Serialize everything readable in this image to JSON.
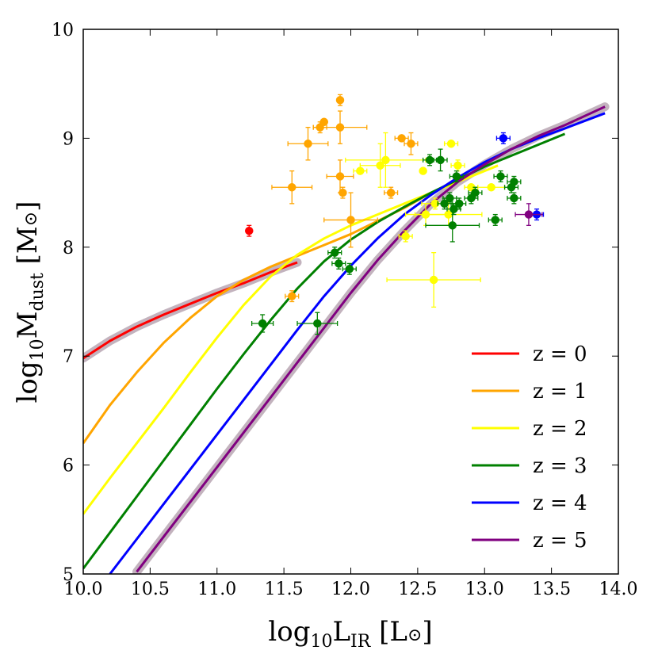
{
  "chart_data": {
    "type": "line",
    "title": "",
    "xlabel": {
      "main": "log",
      "sub": "10",
      "tail": "L",
      "tail_sub": "IR",
      "unit_open": " [L",
      "unit_sym": "⊙",
      "unit_close": "]"
    },
    "ylabel": {
      "main": "log",
      "sub": "10",
      "tail": "M",
      "tail_sub": "dust",
      "unit_open": " [M",
      "unit_sym": "⊙",
      "unit_close": "]"
    },
    "xlim": [
      10.0,
      14.0
    ],
    "ylim": [
      5,
      10
    ],
    "x_ticks": [
      "10.0",
      "10.5",
      "11.0",
      "11.5",
      "12.0",
      "12.5",
      "13.0",
      "13.5",
      "14.0"
    ],
    "y_ticks": [
      "5",
      "6",
      "7",
      "8",
      "9",
      "10"
    ],
    "legend_position": "lower-right",
    "series": [
      {
        "name": "z = 0",
        "color": "#ff0000",
        "band": true,
        "x": [
          10.0,
          10.2,
          10.4,
          10.6,
          10.8,
          11.0,
          11.2,
          11.4,
          11.6
        ],
        "y": [
          6.98,
          7.14,
          7.27,
          7.38,
          7.48,
          7.58,
          7.67,
          7.77,
          7.86
        ]
      },
      {
        "name": "z = 1",
        "color": "#ffa500",
        "band": false,
        "x": [
          10.0,
          10.2,
          10.4,
          10.6,
          10.8,
          11.0,
          11.2,
          11.4,
          11.6,
          11.8,
          12.0,
          12.2,
          12.4,
          12.6
        ],
        "y": [
          6.2,
          6.55,
          6.85,
          7.12,
          7.35,
          7.55,
          7.7,
          7.82,
          7.92,
          8.02,
          8.12,
          8.24,
          8.36,
          8.5
        ]
      },
      {
        "name": "z = 2",
        "color": "#ffff00",
        "band": false,
        "x": [
          10.0,
          10.2,
          10.4,
          10.6,
          10.8,
          11.0,
          11.2,
          11.4,
          11.6,
          11.8,
          12.0,
          12.2,
          12.4,
          12.6,
          12.8,
          13.0,
          13.1
        ],
        "y": [
          5.55,
          5.88,
          6.2,
          6.52,
          6.85,
          7.17,
          7.47,
          7.73,
          7.93,
          8.08,
          8.2,
          8.3,
          8.4,
          8.5,
          8.6,
          8.7,
          8.75
        ]
      },
      {
        "name": "z = 3",
        "color": "#008000",
        "band": false,
        "x": [
          10.0,
          10.2,
          10.4,
          10.6,
          10.8,
          11.0,
          11.2,
          11.4,
          11.6,
          11.8,
          12.0,
          12.2,
          12.4,
          12.6,
          12.8,
          13.0,
          13.2,
          13.4,
          13.6
        ],
        "y": [
          5.05,
          5.38,
          5.71,
          6.04,
          6.37,
          6.7,
          7.02,
          7.33,
          7.62,
          7.87,
          8.07,
          8.23,
          8.37,
          8.5,
          8.62,
          8.74,
          8.84,
          8.94,
          9.04
        ]
      },
      {
        "name": "z = 4",
        "color": "#0000ff",
        "band": false,
        "x": [
          10.2,
          10.4,
          10.6,
          10.8,
          11.0,
          11.2,
          11.4,
          11.6,
          11.8,
          12.0,
          12.2,
          12.4,
          12.6,
          12.8,
          13.0,
          13.2,
          13.4,
          13.6,
          13.9
        ],
        "y": [
          5.0,
          5.32,
          5.64,
          5.96,
          6.28,
          6.6,
          6.92,
          7.24,
          7.55,
          7.83,
          8.08,
          8.3,
          8.48,
          8.64,
          8.78,
          8.9,
          9.0,
          9.09,
          9.23
        ]
      },
      {
        "name": "z = 5",
        "color": "#800080",
        "band": true,
        "x": [
          10.4,
          10.6,
          10.8,
          11.0,
          11.2,
          11.4,
          11.6,
          11.8,
          12.0,
          12.2,
          12.4,
          12.6,
          12.8,
          13.0,
          13.2,
          13.4,
          13.6,
          13.9
        ],
        "y": [
          5.02,
          5.34,
          5.66,
          5.98,
          6.3,
          6.62,
          6.94,
          7.26,
          7.58,
          7.88,
          8.15,
          8.4,
          8.6,
          8.76,
          8.9,
          9.02,
          9.12,
          9.29
        ]
      }
    ],
    "points": [
      {
        "series": "z = 0",
        "color": "#ff0000",
        "items": [
          {
            "x": 11.24,
            "y": 8.15,
            "xerr": 0,
            "yerr": 0.05
          }
        ]
      },
      {
        "series": "z = 1",
        "color": "#ffa500",
        "items": [
          {
            "x": 11.92,
            "y": 9.35,
            "xerr": 0,
            "yerr": 0.05
          },
          {
            "x": 11.77,
            "y": 9.1,
            "xerr": 0.05,
            "yerr": 0.05
          },
          {
            "x": 11.8,
            "y": 9.15,
            "xerr": 0,
            "yerr": 0
          },
          {
            "x": 11.68,
            "y": 8.95,
            "xerr": 0.15,
            "yerr": 0.15
          },
          {
            "x": 11.92,
            "y": 9.1,
            "xerr": 0.2,
            "yerr": 0.15
          },
          {
            "x": 11.92,
            "y": 8.65,
            "xerr": 0.1,
            "yerr": 0.15
          },
          {
            "x": 11.94,
            "y": 8.5,
            "xerr": 0,
            "yerr": 0.05
          },
          {
            "x": 11.56,
            "y": 8.55,
            "xerr": 0.15,
            "yerr": 0.15
          },
          {
            "x": 12.0,
            "y": 8.25,
            "xerr": 0.2,
            "yerr": 0.25
          },
          {
            "x": 11.56,
            "y": 7.55,
            "xerr": 0.05,
            "yerr": 0.05
          },
          {
            "x": 12.3,
            "y": 8.5,
            "xerr": 0.05,
            "yerr": 0.05
          },
          {
            "x": 12.38,
            "y": 9.0,
            "xerr": 0.05,
            "yerr": 0
          },
          {
            "x": 12.45,
            "y": 8.95,
            "xerr": 0.05,
            "yerr": 0.1
          }
        ]
      },
      {
        "series": "z = 2",
        "color": "#ffff00",
        "items": [
          {
            "x": 12.07,
            "y": 8.7,
            "xerr": 0.05,
            "yerr": 0
          },
          {
            "x": 12.22,
            "y": 8.75,
            "xerr": 0.15,
            "yerr": 0.2
          },
          {
            "x": 12.26,
            "y": 8.8,
            "xerr": 0.3,
            "yerr": 0.25
          },
          {
            "x": 12.41,
            "y": 8.1,
            "xerr": 0.05,
            "yerr": 0.05
          },
          {
            "x": 12.54,
            "y": 8.7,
            "xerr": 0,
            "yerr": 0
          },
          {
            "x": 12.56,
            "y": 8.3,
            "xerr": 0.15,
            "yerr": 0.1
          },
          {
            "x": 12.62,
            "y": 7.7,
            "xerr": 0.35,
            "yerr": 0.25
          },
          {
            "x": 12.63,
            "y": 8.4,
            "xerr": 0.1,
            "yerr": 0.05
          },
          {
            "x": 12.73,
            "y": 8.3,
            "xerr": 0.25,
            "yerr": 0.1
          },
          {
            "x": 12.75,
            "y": 8.95,
            "xerr": 0.05,
            "yerr": 0
          },
          {
            "x": 12.8,
            "y": 8.75,
            "xerr": 0.05,
            "yerr": 0.05
          },
          {
            "x": 12.9,
            "y": 8.55,
            "xerr": 0.05,
            "yerr": 0
          },
          {
            "x": 13.05,
            "y": 8.55,
            "xerr": 0.1,
            "yerr": 0
          }
        ]
      },
      {
        "series": "z = 3",
        "color": "#008000",
        "items": [
          {
            "x": 11.34,
            "y": 7.3,
            "xerr": 0.08,
            "yerr": 0.08
          },
          {
            "x": 11.75,
            "y": 7.3,
            "xerr": 0.15,
            "yerr": 0.1
          },
          {
            "x": 11.88,
            "y": 7.95,
            "xerr": 0.05,
            "yerr": 0.05
          },
          {
            "x": 11.91,
            "y": 7.85,
            "xerr": 0.05,
            "yerr": 0.05
          },
          {
            "x": 11.99,
            "y": 7.8,
            "xerr": 0.05,
            "yerr": 0.05
          },
          {
            "x": 12.59,
            "y": 8.8,
            "xerr": 0.05,
            "yerr": 0.05
          },
          {
            "x": 12.67,
            "y": 8.8,
            "xerr": 0.05,
            "yerr": 0.1
          },
          {
            "x": 12.7,
            "y": 8.4,
            "xerr": 0.05,
            "yerr": 0.05
          },
          {
            "x": 12.74,
            "y": 8.45,
            "xerr": 0.05,
            "yerr": 0.05
          },
          {
            "x": 12.76,
            "y": 8.2,
            "xerr": 0.2,
            "yerr": 0.15
          },
          {
            "x": 12.77,
            "y": 8.35,
            "xerr": 0.05,
            "yerr": 0.05
          },
          {
            "x": 12.79,
            "y": 8.65,
            "xerr": 0.05,
            "yerr": 0.05
          },
          {
            "x": 12.81,
            "y": 8.4,
            "xerr": 0.05,
            "yerr": 0.05
          },
          {
            "x": 12.9,
            "y": 8.45,
            "xerr": 0.05,
            "yerr": 0.05
          },
          {
            "x": 12.93,
            "y": 8.5,
            "xerr": 0.05,
            "yerr": 0.05
          },
          {
            "x": 13.08,
            "y": 8.25,
            "xerr": 0.05,
            "yerr": 0.05
          },
          {
            "x": 13.12,
            "y": 8.65,
            "xerr": 0.05,
            "yerr": 0.05
          },
          {
            "x": 13.2,
            "y": 8.55,
            "xerr": 0.05,
            "yerr": 0.05
          },
          {
            "x": 13.22,
            "y": 8.45,
            "xerr": 0.05,
            "yerr": 0.05
          },
          {
            "x": 13.22,
            "y": 8.6,
            "xerr": 0.05,
            "yerr": 0.05
          }
        ]
      },
      {
        "series": "z = 4",
        "color": "#0000ff",
        "items": [
          {
            "x": 13.14,
            "y": 9.0,
            "xerr": 0.05,
            "yerr": 0.05
          },
          {
            "x": 13.39,
            "y": 8.3,
            "xerr": 0.05,
            "yerr": 0.05
          }
        ]
      },
      {
        "series": "z = 5",
        "color": "#800080",
        "items": [
          {
            "x": 13.33,
            "y": 8.3,
            "xerr": 0.1,
            "yerr": 0.1
          }
        ]
      }
    ]
  }
}
